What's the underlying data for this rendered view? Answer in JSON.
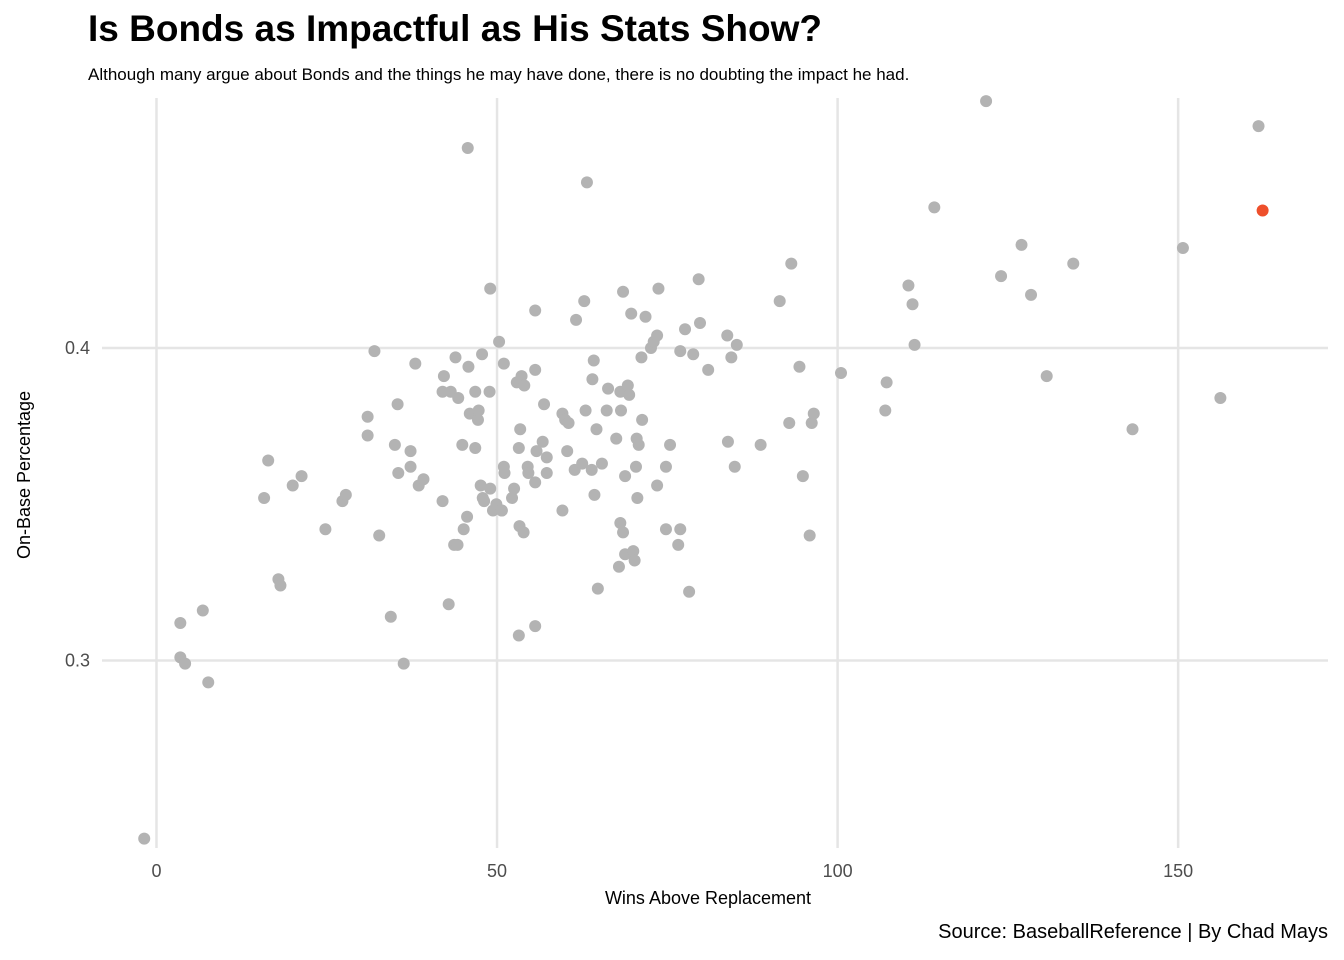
{
  "chart_data": {
    "type": "scatter",
    "title": "Is Bonds as Impactful as His Stats Show?",
    "subtitle": "Although many argue about Bonds and the things he may have done, there is no doubting the impact he had.",
    "caption": "Source: BaseballReference | By Chad Mays",
    "xlabel": "Wins Above Replacement",
    "ylabel": "On-Base Percentage",
    "xlim": [
      -8,
      172
    ],
    "ylim": [
      0.24,
      0.48
    ],
    "x_ticks": [
      0,
      50,
      100,
      150
    ],
    "x_tick_labels": [
      "0",
      "50",
      "100",
      "150"
    ],
    "y_ticks": [
      0.3,
      0.4
    ],
    "y_tick_labels": [
      "0.3",
      "0.4"
    ],
    "grid": true,
    "colors": {
      "default": "#b3b3b3",
      "highlight": "#ee4f2b",
      "grid": "#e5e5e5"
    },
    "series": [
      {
        "highlight": false,
        "points": [
          [
            -1.8,
            0.243
          ],
          [
            3.5,
            0.312
          ],
          [
            3.5,
            0.301
          ],
          [
            4.2,
            0.299
          ],
          [
            6.8,
            0.316
          ],
          [
            7.6,
            0.293
          ],
          [
            15.8,
            0.352
          ],
          [
            16.4,
            0.364
          ],
          [
            17.9,
            0.326
          ],
          [
            18.2,
            0.324
          ],
          [
            20.0,
            0.356
          ],
          [
            21.3,
            0.359
          ],
          [
            24.8,
            0.342
          ],
          [
            27.3,
            0.351
          ],
          [
            27.8,
            0.353
          ],
          [
            31.0,
            0.378
          ],
          [
            31.0,
            0.372
          ],
          [
            32.0,
            0.399
          ],
          [
            32.7,
            0.34
          ],
          [
            34.4,
            0.314
          ],
          [
            35.0,
            0.369
          ],
          [
            35.4,
            0.382
          ],
          [
            35.5,
            0.36
          ],
          [
            36.3,
            0.299
          ],
          [
            37.3,
            0.362
          ],
          [
            37.3,
            0.367
          ],
          [
            38.0,
            0.395
          ],
          [
            38.5,
            0.356
          ],
          [
            39.2,
            0.358
          ],
          [
            42.0,
            0.386
          ],
          [
            42.0,
            0.351
          ],
          [
            42.2,
            0.391
          ],
          [
            42.9,
            0.318
          ],
          [
            43.2,
            0.386
          ],
          [
            43.7,
            0.337
          ],
          [
            43.9,
            0.397
          ],
          [
            44.2,
            0.337
          ],
          [
            44.3,
            0.384
          ],
          [
            44.9,
            0.369
          ],
          [
            45.1,
            0.342
          ],
          [
            45.6,
            0.346
          ],
          [
            45.7,
            0.464
          ],
          [
            45.8,
            0.394
          ],
          [
            46.0,
            0.379
          ],
          [
            46.8,
            0.386
          ],
          [
            46.8,
            0.368
          ],
          [
            47.2,
            0.377
          ],
          [
            47.3,
            0.38
          ],
          [
            47.6,
            0.356
          ],
          [
            47.8,
            0.398
          ],
          [
            47.9,
            0.352
          ],
          [
            48.1,
            0.351
          ],
          [
            48.9,
            0.386
          ],
          [
            49.0,
            0.355
          ],
          [
            49.0,
            0.419
          ],
          [
            49.4,
            0.348
          ],
          [
            49.9,
            0.35
          ],
          [
            50.3,
            0.402
          ],
          [
            50.7,
            0.348
          ],
          [
            50.7,
            0.348
          ],
          [
            51.0,
            0.362
          ],
          [
            51.0,
            0.395
          ],
          [
            51.1,
            0.36
          ],
          [
            52.2,
            0.352
          ],
          [
            52.5,
            0.355
          ],
          [
            52.9,
            0.389
          ],
          [
            53.2,
            0.308
          ],
          [
            53.2,
            0.368
          ],
          [
            53.3,
            0.343
          ],
          [
            53.4,
            0.374
          ],
          [
            53.6,
            0.391
          ],
          [
            53.9,
            0.341
          ],
          [
            54.0,
            0.388
          ],
          [
            54.5,
            0.362
          ],
          [
            54.6,
            0.36
          ],
          [
            55.6,
            0.357
          ],
          [
            55.6,
            0.393
          ],
          [
            55.6,
            0.311
          ],
          [
            55.6,
            0.412
          ],
          [
            55.8,
            0.367
          ],
          [
            56.7,
            0.37
          ],
          [
            56.9,
            0.382
          ],
          [
            57.3,
            0.365
          ],
          [
            57.3,
            0.36
          ],
          [
            59.6,
            0.379
          ],
          [
            59.6,
            0.348
          ],
          [
            60.0,
            0.377
          ],
          [
            60.5,
            0.376
          ],
          [
            60.3,
            0.367
          ],
          [
            61.4,
            0.361
          ],
          [
            61.6,
            0.409
          ],
          [
            62.5,
            0.363
          ],
          [
            62.8,
            0.415
          ],
          [
            63.0,
            0.38
          ],
          [
            63.2,
            0.453
          ],
          [
            63.9,
            0.361
          ],
          [
            64.0,
            0.39
          ],
          [
            64.2,
            0.396
          ],
          [
            64.3,
            0.353
          ],
          [
            64.6,
            0.374
          ],
          [
            64.8,
            0.323
          ],
          [
            65.4,
            0.363
          ],
          [
            66.1,
            0.38
          ],
          [
            66.3,
            0.387
          ],
          [
            67.5,
            0.371
          ],
          [
            67.9,
            0.33
          ],
          [
            68.1,
            0.344
          ],
          [
            68.1,
            0.386
          ],
          [
            68.2,
            0.38
          ],
          [
            68.5,
            0.341
          ],
          [
            68.5,
            0.418
          ],
          [
            68.8,
            0.359
          ],
          [
            68.8,
            0.334
          ],
          [
            69.2,
            0.388
          ],
          [
            69.4,
            0.385
          ],
          [
            69.7,
            0.411
          ],
          [
            70.0,
            0.335
          ],
          [
            70.2,
            0.332
          ],
          [
            70.4,
            0.362
          ],
          [
            70.5,
            0.371
          ],
          [
            70.6,
            0.352
          ],
          [
            70.8,
            0.369
          ],
          [
            71.2,
            0.397
          ],
          [
            71.3,
            0.377
          ],
          [
            71.8,
            0.41
          ],
          [
            72.6,
            0.4
          ],
          [
            73.0,
            0.402
          ],
          [
            73.5,
            0.404
          ],
          [
            73.5,
            0.356
          ],
          [
            73.7,
            0.419
          ],
          [
            74.8,
            0.362
          ],
          [
            74.8,
            0.342
          ],
          [
            75.4,
            0.369
          ],
          [
            76.6,
            0.337
          ],
          [
            76.9,
            0.342
          ],
          [
            76.9,
            0.399
          ],
          [
            77.6,
            0.406
          ],
          [
            78.2,
            0.322
          ],
          [
            78.8,
            0.398
          ],
          [
            79.6,
            0.422
          ],
          [
            79.8,
            0.408
          ],
          [
            81.0,
            0.393
          ],
          [
            83.8,
            0.404
          ],
          [
            83.9,
            0.37
          ],
          [
            84.4,
            0.397
          ],
          [
            84.9,
            0.362
          ],
          [
            85.2,
            0.401
          ],
          [
            88.7,
            0.369
          ],
          [
            91.5,
            0.415
          ],
          [
            92.9,
            0.376
          ],
          [
            93.2,
            0.427
          ],
          [
            94.4,
            0.394
          ],
          [
            94.9,
            0.359
          ],
          [
            95.9,
            0.34
          ],
          [
            96.2,
            0.376
          ],
          [
            96.5,
            0.379
          ],
          [
            100.5,
            0.392
          ],
          [
            107.0,
            0.38
          ],
          [
            107.2,
            0.389
          ],
          [
            110.4,
            0.42
          ],
          [
            111.0,
            0.414
          ],
          [
            111.3,
            0.401
          ],
          [
            114.2,
            0.445
          ],
          [
            121.8,
            0.479
          ],
          [
            124.0,
            0.423
          ],
          [
            127.0,
            0.433
          ],
          [
            128.4,
            0.417
          ],
          [
            130.7,
            0.391
          ],
          [
            134.6,
            0.427
          ],
          [
            143.3,
            0.374
          ],
          [
            150.7,
            0.432
          ],
          [
            156.2,
            0.384
          ],
          [
            161.8,
            0.471
          ]
        ]
      },
      {
        "highlight": true,
        "points": [
          [
            162.4,
            0.444
          ]
        ]
      }
    ]
  }
}
